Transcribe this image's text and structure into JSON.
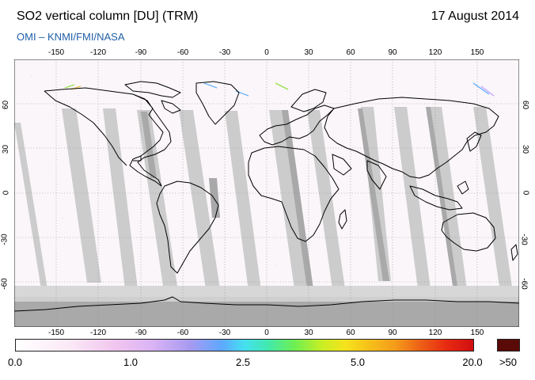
{
  "header": {
    "title": "SO2 vertical column [DU] (TRM)",
    "date": "17 August 2014",
    "credit": "OMI  –  KNMI/FMI/NASA"
  },
  "map": {
    "lon_ticks": [
      "-150",
      "-120",
      "-90",
      "-60",
      "-30",
      "0",
      "30",
      "60",
      "90",
      "120",
      "150"
    ],
    "lat_ticks": [
      "60",
      "30",
      "0",
      "-30",
      "-60"
    ],
    "land_fill": "#ffffff",
    "orbit_gap_color": "#cccccc",
    "overlap_color": "#a9a9a9",
    "coastline_color": "#000000"
  },
  "colorbar": {
    "labels": [
      "0.0",
      "1.0",
      "2.5",
      "5.0",
      "20.0",
      ">50"
    ],
    "overflow_color": "#5a0a07"
  }
}
